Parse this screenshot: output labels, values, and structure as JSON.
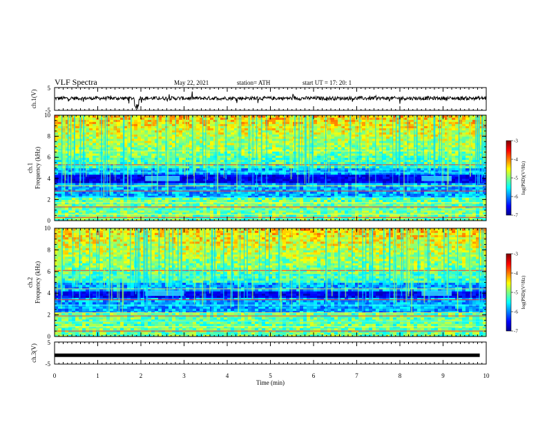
{
  "header": {
    "title": "VLF Spectra",
    "date": "May 22, 2021",
    "station": "station= ATH",
    "start_ut": "start  UT =   17: 20: 1"
  },
  "chart_data": [
    {
      "type": "line",
      "name": "channel-1-waveform",
      "ylabel": "ch.1(V)",
      "yticks": [
        "5",
        "-5"
      ],
      "ylim": [
        -5,
        5
      ],
      "xlim": [
        0,
        10
      ]
    },
    {
      "type": "heatmap",
      "name": "channel-1-spectrogram",
      "ylabel": "ch.1\nFrequency  (kHz)",
      "ylabel_line1": "ch.1",
      "ylabel_line2": "Frequency  (kHz)",
      "yticks": [
        "0",
        "2",
        "4",
        "6",
        "8",
        "10"
      ],
      "ylim": [
        0,
        10
      ],
      "xlim": [
        0,
        10
      ],
      "colorbar": {
        "label": "log(PSD)(V²/Hz)",
        "ticks": [
          "-3",
          "-4",
          "-5",
          "-6",
          "-7"
        ],
        "range": [
          -7,
          -3
        ]
      },
      "features": {
        "horizontal_bands_khz": [
          0.3,
          0.6,
          1.0,
          1.3,
          1.7,
          2.2,
          2.8,
          3.3,
          4.6,
          5.3,
          6.6
        ],
        "dark_band_khz": [
          3.6,
          4.4
        ],
        "emission_patches": [
          {
            "x_min": [
              2.1,
              2.9
            ],
            "f_khz": 4.0
          },
          {
            "x_min": [
              8.5,
              9.2
            ],
            "f_khz": 4.0
          }
        ]
      }
    },
    {
      "type": "heatmap",
      "name": "channel-2-spectrogram",
      "ylabel": "ch.2\nFrequency  (kHz)",
      "ylabel_line1": "ch.2",
      "ylabel_line2": "Frequency  (kHz)",
      "yticks": [
        "0",
        "2",
        "4",
        "6",
        "8",
        "10"
      ],
      "ylim": [
        0,
        10
      ],
      "xlim": [
        0,
        10
      ],
      "colorbar": {
        "label": "log(PSD)(V²/Hz)",
        "ticks": [
          "-3",
          "-4",
          "-5",
          "-6",
          "-7"
        ],
        "range": [
          -7,
          -3
        ]
      },
      "features": {
        "horizontal_bands_khz": [
          0.5,
          0.9,
          1.4,
          1.9,
          2.2,
          2.9,
          3.4,
          4.4,
          5.6,
          6.1
        ],
        "dark_band_khz": [
          3.7,
          4.2
        ],
        "emission_patches": [
          {
            "x_min": [
              2.1,
              3.0
            ],
            "f_khz": 4.0
          },
          {
            "x_min": [
              8.5,
              9.2
            ],
            "f_khz": 4.0
          }
        ]
      }
    },
    {
      "type": "line",
      "name": "channel-3-waveform",
      "ylabel": "ch.3(V)",
      "yticks": [
        "5",
        "-5"
      ],
      "ylim": [
        -5,
        5
      ],
      "xlim": [
        0,
        10
      ],
      "values_note_constant": -1.0
    }
  ],
  "xaxis": {
    "label": "Time  (min)",
    "ticks": [
      "0",
      "1",
      "2",
      "3",
      "4",
      "5",
      "6",
      "7",
      "8",
      "9",
      "10"
    ],
    "range": [
      0,
      10
    ]
  }
}
